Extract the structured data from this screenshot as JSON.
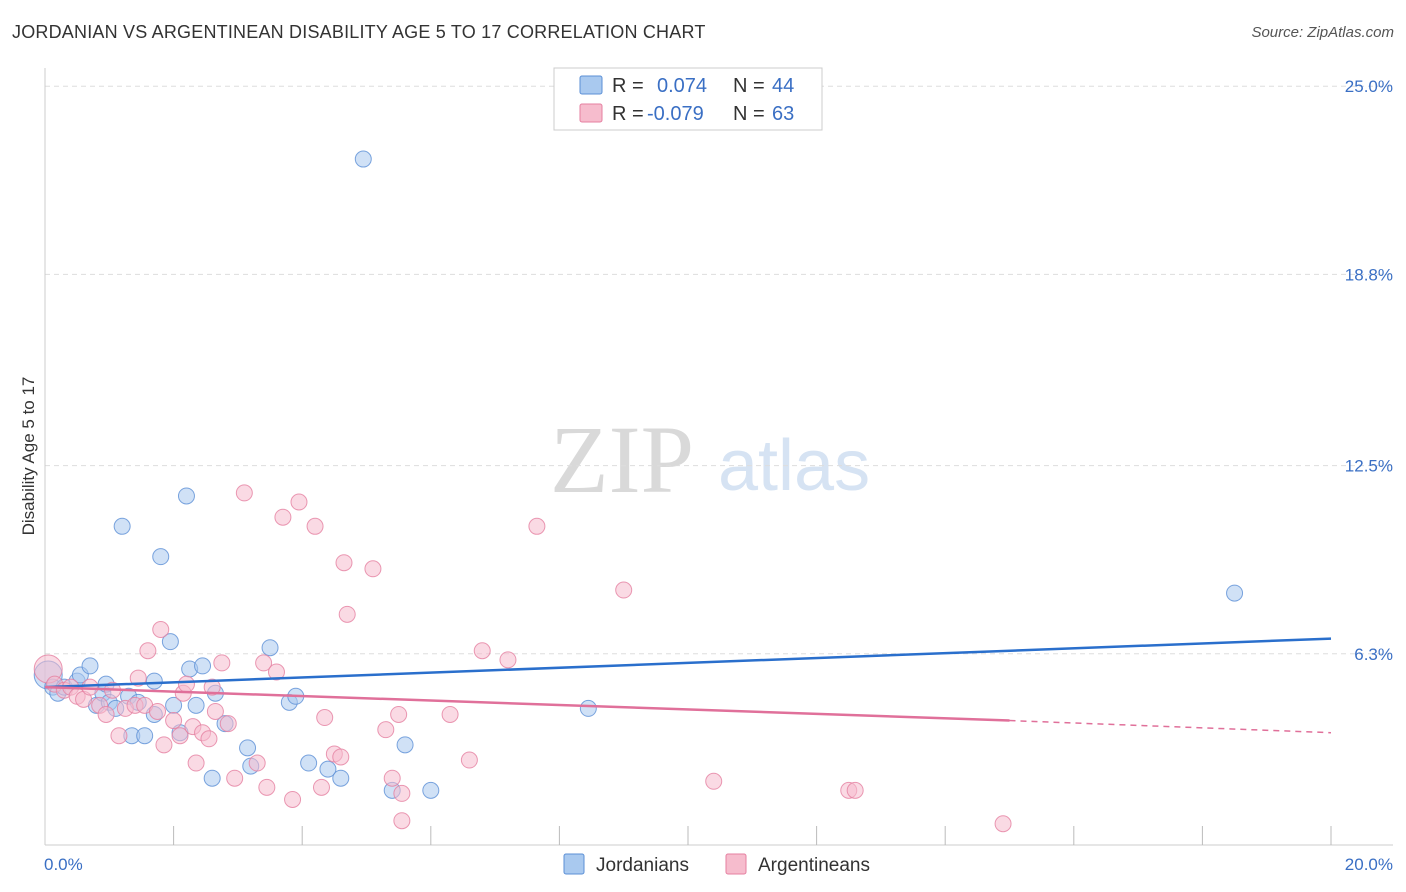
{
  "header": {
    "title": "JORDANIAN VS ARGENTINEAN DISABILITY AGE 5 TO 17 CORRELATION CHART",
    "source": "Source: ZipAtlas.com"
  },
  "watermark": {
    "zip": "ZIP",
    "atlas": "atlas"
  },
  "colors": {
    "blue_fill": "#a9c9ef",
    "blue_stroke": "#5b8fd6",
    "blue_line": "#2a6fcc",
    "pink_fill": "#f6bccd",
    "pink_stroke": "#e57fa0",
    "pink_line": "#e0709a",
    "grid": "#dddddd",
    "axis_text": "#3a6fc4"
  },
  "legend": {
    "rows": [
      {
        "r_label": "R =",
        "r_value": "0.074",
        "n_label": "N =",
        "n_value": "44"
      },
      {
        "r_label": "R =",
        "r_value": "-0.079",
        "n_label": "N =",
        "n_value": "63"
      }
    ],
    "bottom": [
      "Jordanians",
      "Argentineans"
    ]
  },
  "chart_data": {
    "type": "scatter",
    "title": "JORDANIAN VS ARGENTINEAN DISABILITY AGE 5 TO 17 CORRELATION CHART",
    "xlabel": "",
    "ylabel": "Disability Age 5 to 17",
    "xlim": [
      0,
      20
    ],
    "ylim": [
      0,
      25.6
    ],
    "x_tick_labels": [
      "0.0%",
      "20.0%"
    ],
    "y_ticks": [
      6.3,
      12.5,
      18.8,
      25.0
    ],
    "y_tick_labels": [
      "6.3%",
      "12.5%",
      "18.8%",
      "25.0%"
    ],
    "series": [
      {
        "name": "Jordanians",
        "r": 0.074,
        "n": 44,
        "trend": {
          "x": [
            0,
            20
          ],
          "y": [
            5.2,
            6.8
          ]
        },
        "points": [
          [
            0.05,
            5.6
          ],
          [
            0.12,
            5.2
          ],
          [
            0.2,
            5.0
          ],
          [
            0.3,
            5.2
          ],
          [
            0.5,
            5.4
          ],
          [
            0.55,
            5.6
          ],
          [
            0.7,
            5.9
          ],
          [
            0.8,
            4.6
          ],
          [
            0.9,
            5.0
          ],
          [
            0.95,
            5.3
          ],
          [
            1.0,
            4.7
          ],
          [
            1.1,
            4.5
          ],
          [
            1.2,
            10.5
          ],
          [
            1.3,
            4.9
          ],
          [
            1.35,
            3.6
          ],
          [
            1.45,
            4.7
          ],
          [
            1.55,
            3.6
          ],
          [
            1.7,
            4.3
          ],
          [
            1.7,
            5.4
          ],
          [
            1.8,
            9.5
          ],
          [
            1.95,
            6.7
          ],
          [
            2.0,
            4.6
          ],
          [
            2.1,
            3.7
          ],
          [
            2.2,
            11.5
          ],
          [
            2.25,
            5.8
          ],
          [
            2.35,
            4.6
          ],
          [
            2.45,
            5.9
          ],
          [
            2.6,
            2.2
          ],
          [
            2.65,
            5.0
          ],
          [
            2.8,
            4.0
          ],
          [
            3.15,
            3.2
          ],
          [
            3.2,
            2.6
          ],
          [
            3.5,
            6.5
          ],
          [
            3.8,
            4.7
          ],
          [
            3.9,
            4.9
          ],
          [
            4.1,
            2.7
          ],
          [
            4.4,
            2.5
          ],
          [
            4.6,
            2.2
          ],
          [
            4.95,
            22.6
          ],
          [
            5.4,
            1.8
          ],
          [
            5.6,
            3.3
          ],
          [
            6.0,
            1.8
          ],
          [
            8.45,
            4.5
          ],
          [
            18.5,
            8.3
          ]
        ]
      },
      {
        "name": "Argentineans",
        "r": -0.079,
        "n": 63,
        "trend": {
          "x": [
            0,
            15
          ],
          "y": [
            5.2,
            4.1
          ]
        },
        "trend_dashed": {
          "x": [
            15,
            20
          ],
          "y": [
            4.1,
            3.7
          ]
        },
        "points": [
          [
            0.05,
            5.8
          ],
          [
            0.15,
            5.3
          ],
          [
            0.3,
            5.1
          ],
          [
            0.4,
            5.2
          ],
          [
            0.5,
            4.9
          ],
          [
            0.6,
            4.8
          ],
          [
            0.7,
            5.2
          ],
          [
            0.85,
            4.6
          ],
          [
            0.95,
            4.3
          ],
          [
            1.05,
            5.1
          ],
          [
            1.15,
            3.6
          ],
          [
            1.25,
            4.5
          ],
          [
            1.4,
            4.6
          ],
          [
            1.45,
            5.5
          ],
          [
            1.55,
            4.6
          ],
          [
            1.6,
            6.4
          ],
          [
            1.75,
            4.4
          ],
          [
            1.8,
            7.1
          ],
          [
            1.85,
            3.3
          ],
          [
            2.0,
            4.1
          ],
          [
            2.1,
            3.6
          ],
          [
            2.15,
            5.0
          ],
          [
            2.2,
            5.3
          ],
          [
            2.3,
            3.9
          ],
          [
            2.35,
            2.7
          ],
          [
            2.45,
            3.7
          ],
          [
            2.55,
            3.5
          ],
          [
            2.6,
            5.2
          ],
          [
            2.65,
            4.4
          ],
          [
            2.75,
            6.0
          ],
          [
            2.85,
            4.0
          ],
          [
            2.95,
            2.2
          ],
          [
            3.1,
            11.6
          ],
          [
            3.3,
            2.7
          ],
          [
            3.4,
            6.0
          ],
          [
            3.45,
            1.9
          ],
          [
            3.6,
            5.7
          ],
          [
            3.7,
            10.8
          ],
          [
            3.85,
            1.5
          ],
          [
            3.95,
            11.3
          ],
          [
            4.2,
            10.5
          ],
          [
            4.3,
            1.9
          ],
          [
            4.35,
            4.2
          ],
          [
            4.5,
            3.0
          ],
          [
            4.6,
            2.9
          ],
          [
            4.65,
            9.3
          ],
          [
            4.7,
            7.6
          ],
          [
            5.1,
            9.1
          ],
          [
            5.3,
            3.8
          ],
          [
            5.4,
            2.2
          ],
          [
            5.5,
            4.3
          ],
          [
            5.55,
            0.8
          ],
          [
            5.55,
            1.7
          ],
          [
            6.3,
            4.3
          ],
          [
            6.6,
            2.8
          ],
          [
            6.8,
            6.4
          ],
          [
            7.2,
            6.1
          ],
          [
            7.65,
            10.5
          ],
          [
            9.0,
            8.4
          ],
          [
            10.4,
            2.1
          ],
          [
            12.5,
            1.8
          ],
          [
            12.6,
            1.8
          ],
          [
            14.9,
            0.7
          ]
        ]
      }
    ],
    "legend_position": "top-center"
  }
}
